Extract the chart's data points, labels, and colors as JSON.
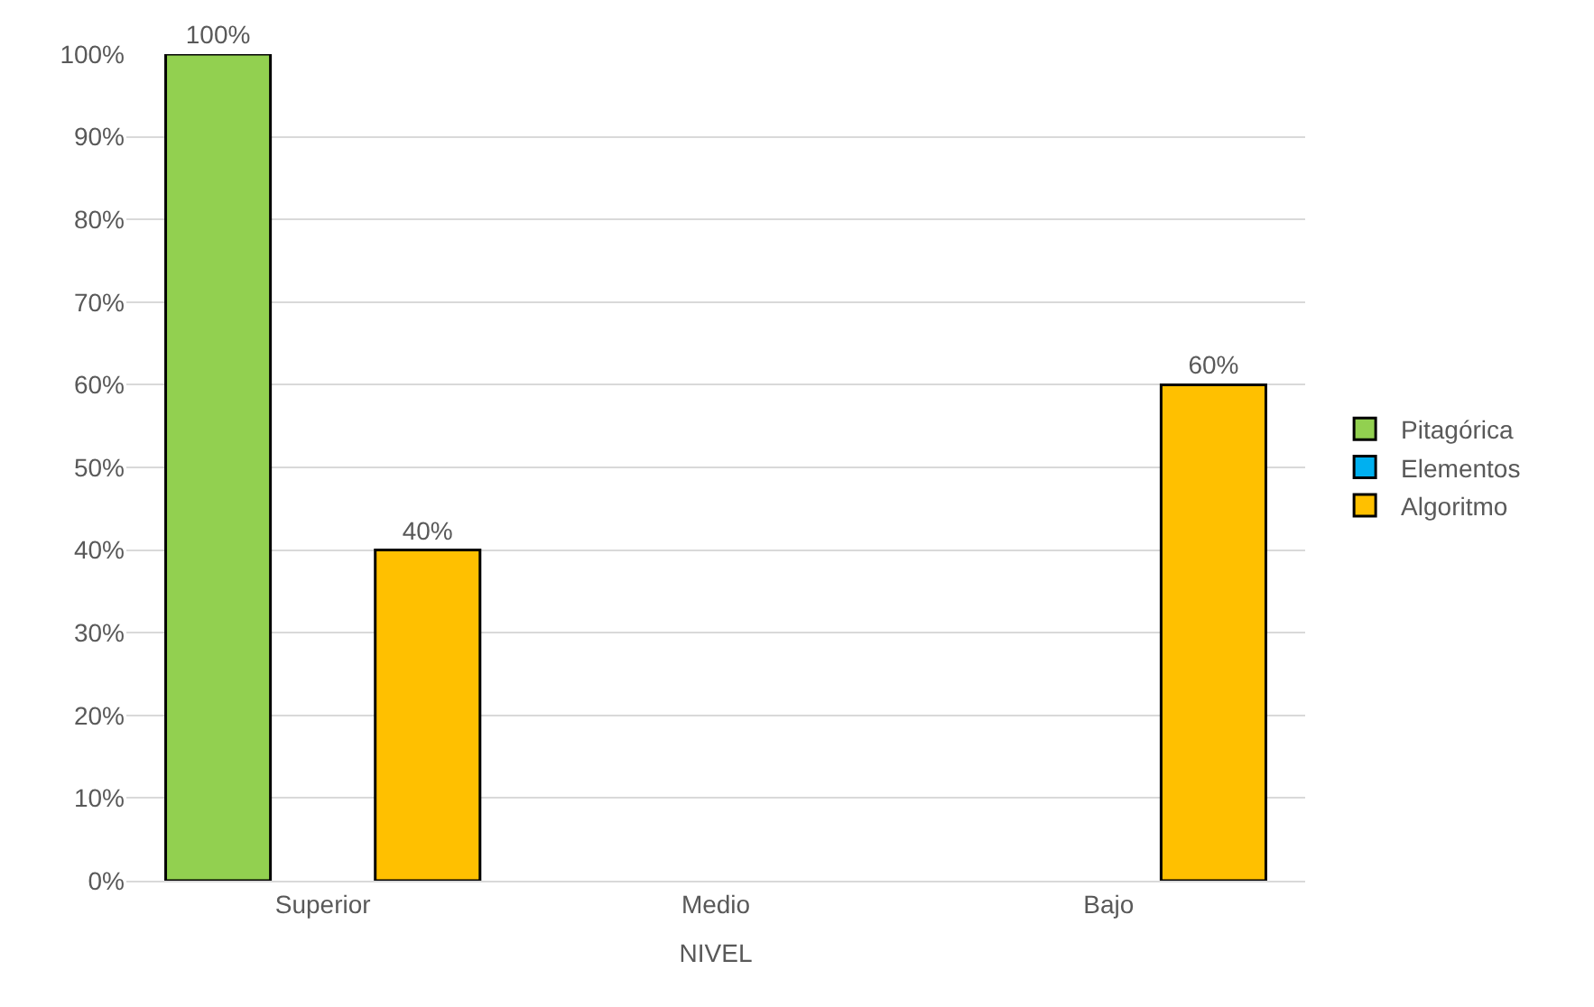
{
  "chart_data": {
    "type": "bar",
    "xlabel": "NIVEL",
    "categories": [
      "Superior",
      "Medio",
      "Bajo"
    ],
    "series": [
      {
        "name": "Pitagórica",
        "color": "#92d050",
        "values": [
          100,
          null,
          null
        ],
        "value_labels": [
          "100%",
          null,
          null
        ]
      },
      {
        "name": "Elementos",
        "color": "#00b0f0",
        "values": [
          null,
          null,
          null
        ],
        "value_labels": [
          null,
          null,
          null
        ]
      },
      {
        "name": "Algoritmo",
        "color": "#ffc000",
        "values": [
          40,
          null,
          60
        ],
        "value_labels": [
          "40%",
          null,
          "60%"
        ]
      }
    ],
    "ylim": [
      0,
      100
    ],
    "yticks": [
      {
        "value": 0,
        "label": "0%"
      },
      {
        "value": 10,
        "label": "10%"
      },
      {
        "value": 20,
        "label": "20%"
      },
      {
        "value": 30,
        "label": "30%"
      },
      {
        "value": 40,
        "label": "40%"
      },
      {
        "value": 50,
        "label": "50%"
      },
      {
        "value": 60,
        "label": "60%"
      },
      {
        "value": 70,
        "label": "70%"
      },
      {
        "value": 80,
        "label": "80%"
      },
      {
        "value": 90,
        "label": "90%"
      },
      {
        "value": 100,
        "label": "100%"
      }
    ],
    "grid": "y",
    "legend": "right"
  }
}
